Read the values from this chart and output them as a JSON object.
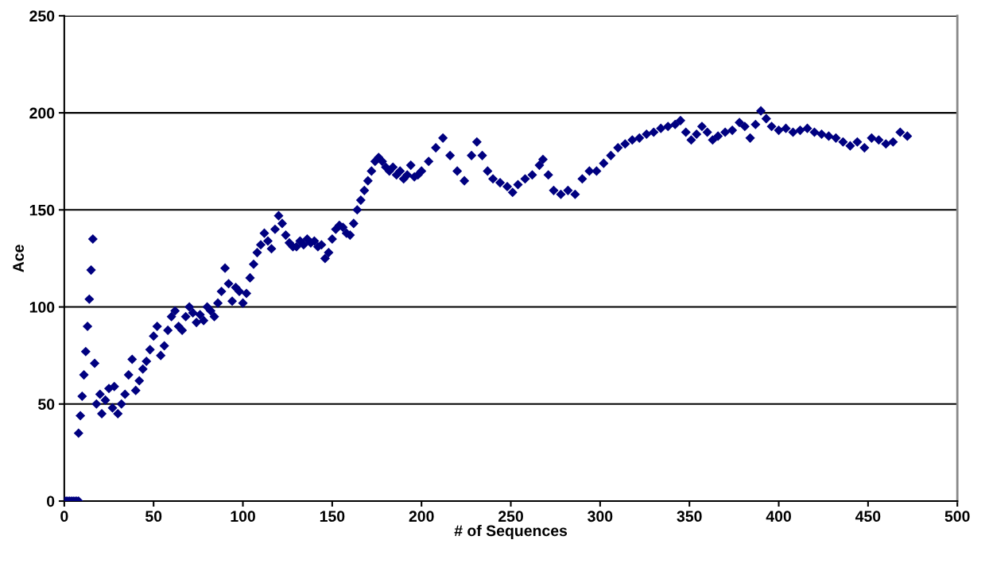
{
  "chart_data": {
    "type": "scatter",
    "xlabel": "# of Sequences",
    "ylabel": "Ace",
    "xlim": [
      0,
      500
    ],
    "xticks": [
      0,
      50,
      100,
      150,
      200,
      250,
      300,
      350,
      400,
      450,
      500
    ],
    "ylim": [
      0,
      250
    ],
    "yticks": [
      0,
      50,
      100,
      150,
      200,
      250
    ],
    "grid": "y",
    "marker": "diamond",
    "legend": false,
    "series": [
      {
        "color": "#000080",
        "x": [
          0,
          1,
          2,
          3,
          4,
          5,
          6,
          7,
          8,
          8,
          9,
          10,
          11,
          12,
          13,
          14,
          15,
          16,
          17,
          18,
          20,
          21,
          23,
          25,
          27,
          28,
          30,
          32,
          34,
          36,
          38,
          40,
          42,
          44,
          46,
          48,
          50,
          52,
          54,
          56,
          58,
          60,
          62,
          64,
          66,
          68,
          70,
          72,
          74,
          76,
          78,
          80,
          82,
          84,
          86,
          88,
          90,
          92,
          94,
          96,
          98,
          100,
          102,
          104,
          106,
          108,
          110,
          112,
          114,
          116,
          118,
          120,
          122,
          124,
          126,
          128,
          130,
          132,
          134,
          136,
          138,
          140,
          142,
          144,
          146,
          148,
          150,
          152,
          154,
          156,
          158,
          160,
          162,
          164,
          166,
          168,
          170,
          172,
          174,
          176,
          178,
          180,
          182,
          184,
          186,
          188,
          190,
          192,
          194,
          196,
          198,
          200,
          204,
          208,
          212,
          216,
          220,
          224,
          228,
          231,
          234,
          237,
          240,
          244,
          248,
          251,
          254,
          258,
          262,
          266,
          268,
          271,
          274,
          278,
          282,
          286,
          290,
          294,
          298,
          302,
          306,
          310,
          314,
          318,
          322,
          326,
          330,
          334,
          338,
          342,
          345,
          348,
          351,
          354,
          357,
          360,
          363,
          366,
          370,
          374,
          378,
          381,
          384,
          387,
          390,
          393,
          396,
          400,
          404,
          408,
          412,
          416,
          420,
          424,
          428,
          432,
          436,
          440,
          444,
          448,
          452,
          456,
          460,
          464,
          468,
          472
        ],
        "values": [
          0,
          0,
          0,
          0,
          0,
          0,
          0,
          0,
          0,
          35,
          44,
          54,
          65,
          77,
          90,
          104,
          119,
          135,
          71,
          50,
          55,
          45,
          52,
          58,
          48,
          59,
          45,
          50,
          55,
          65,
          73,
          57,
          62,
          68,
          72,
          78,
          85,
          90,
          75,
          80,
          88,
          95,
          98,
          90,
          88,
          95,
          100,
          97,
          92,
          96,
          93,
          100,
          98,
          95,
          102,
          108,
          120,
          112,
          103,
          110,
          108,
          102,
          107,
          115,
          122,
          128,
          132,
          138,
          134,
          130,
          140,
          147,
          143,
          137,
          133,
          131,
          131,
          134,
          132,
          135,
          133,
          134,
          131,
          132,
          125,
          128,
          135,
          140,
          142,
          141,
          138,
          137,
          143,
          150,
          155,
          160,
          165,
          170,
          175,
          177,
          175,
          172,
          170,
          172,
          168,
          170,
          166,
          168,
          173,
          167,
          168,
          170,
          175,
          182,
          187,
          178,
          170,
          165,
          178,
          185,
          178,
          170,
          166,
          164,
          162,
          159,
          163,
          166,
          168,
          173,
          176,
          168,
          160,
          158,
          160,
          158,
          166,
          170,
          170,
          174,
          178,
          182,
          184,
          186,
          187,
          189,
          190,
          192,
          193,
          194,
          196,
          190,
          186,
          189,
          193,
          190,
          186,
          188,
          190,
          191,
          195,
          193,
          187,
          194,
          201,
          197,
          193,
          191,
          192,
          190,
          191,
          192,
          190,
          189,
          188,
          187,
          185,
          183,
          185,
          182,
          187,
          186,
          184,
          185,
          190,
          188
        ]
      }
    ]
  }
}
